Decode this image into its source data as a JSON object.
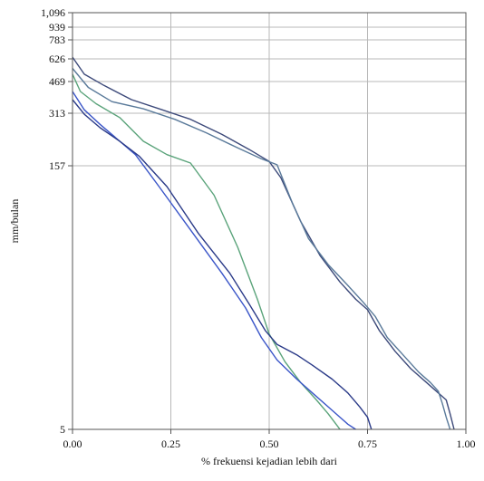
{
  "chart_data": {
    "type": "line",
    "title": "",
    "xlabel": "% frekuensi kejadian lebih dari",
    "ylabel": "mm/bulan",
    "xlim": [
      0,
      1
    ],
    "x_ticks": [
      0,
      0.25,
      0.5,
      0.75,
      1
    ],
    "x_tick_labels": [
      "0.00",
      "0.25",
      "0.50",
      "0.75",
      "1.00"
    ],
    "y_ticks": [
      5,
      157,
      313,
      469,
      626,
      783,
      939,
      1096
    ],
    "y_tick_labels": [
      "5",
      "157",
      "313",
      "469",
      "626",
      "783",
      "939",
      "1,096"
    ],
    "y_scale": "non-linear",
    "grid": true,
    "legend": "none",
    "series": [
      {
        "color": "#3d4a7a",
        "points": [
          [
            0,
            640
          ],
          [
            0.03,
            520
          ],
          [
            0.08,
            450
          ],
          [
            0.15,
            380
          ],
          [
            0.22,
            335
          ],
          [
            0.3,
            295
          ],
          [
            0.38,
            250
          ],
          [
            0.45,
            205
          ],
          [
            0.5,
            170
          ],
          [
            0.53,
            150
          ],
          [
            0.58,
            125
          ],
          [
            0.63,
            105
          ],
          [
            0.68,
            90
          ],
          [
            0.72,
            80
          ],
          [
            0.75,
            74
          ],
          [
            0.78,
            62
          ],
          [
            0.82,
            50
          ],
          [
            0.86,
            40
          ],
          [
            0.9,
            32
          ],
          [
            0.93,
            26
          ],
          [
            0.95,
            22
          ],
          [
            0.96,
            14
          ],
          [
            0.97,
            5
          ]
        ]
      },
      {
        "color": "#5a7a9a",
        "points": [
          [
            0,
            560
          ],
          [
            0.04,
            440
          ],
          [
            0.1,
            370
          ],
          [
            0.18,
            335
          ],
          [
            0.26,
            295
          ],
          [
            0.34,
            255
          ],
          [
            0.42,
            210
          ],
          [
            0.48,
            178
          ],
          [
            0.52,
            160
          ],
          [
            0.56,
            135
          ],
          [
            0.6,
            115
          ],
          [
            0.65,
            100
          ],
          [
            0.7,
            88
          ],
          [
            0.74,
            78
          ],
          [
            0.77,
            70
          ],
          [
            0.8,
            58
          ],
          [
            0.84,
            48
          ],
          [
            0.88,
            38
          ],
          [
            0.91,
            32
          ],
          [
            0.93,
            27
          ],
          [
            0.94,
            20
          ],
          [
            0.95,
            12
          ],
          [
            0.96,
            5
          ]
        ]
      },
      {
        "color": "#5aa37a",
        "points": [
          [
            0,
            520
          ],
          [
            0.02,
            420
          ],
          [
            0.06,
            360
          ],
          [
            0.12,
            300
          ],
          [
            0.18,
            230
          ],
          [
            0.24,
            190
          ],
          [
            0.3,
            165
          ],
          [
            0.36,
            140
          ],
          [
            0.42,
            110
          ],
          [
            0.47,
            80
          ],
          [
            0.5,
            60
          ],
          [
            0.54,
            44
          ],
          [
            0.58,
            32
          ],
          [
            0.62,
            22
          ],
          [
            0.65,
            14
          ],
          [
            0.67,
            8
          ],
          [
            0.68,
            5
          ]
        ]
      },
      {
        "color": "#3a55c8",
        "points": [
          [
            0,
            420
          ],
          [
            0.03,
            330
          ],
          [
            0.07,
            280
          ],
          [
            0.11,
            240
          ],
          [
            0.16,
            190
          ],
          [
            0.22,
            145
          ],
          [
            0.3,
            120
          ],
          [
            0.38,
            95
          ],
          [
            0.44,
            75
          ],
          [
            0.48,
            58
          ],
          [
            0.52,
            45
          ],
          [
            0.57,
            34
          ],
          [
            0.61,
            26
          ],
          [
            0.65,
            18
          ],
          [
            0.68,
            12
          ],
          [
            0.7,
            8
          ],
          [
            0.72,
            5
          ]
        ]
      },
      {
        "color": "#2a3a88",
        "points": [
          [
            0,
            380
          ],
          [
            0.03,
            310
          ],
          [
            0.07,
            270
          ],
          [
            0.12,
            230
          ],
          [
            0.17,
            185
          ],
          [
            0.24,
            145
          ],
          [
            0.32,
            118
          ],
          [
            0.4,
            95
          ],
          [
            0.45,
            77
          ],
          [
            0.49,
            62
          ],
          [
            0.52,
            54
          ],
          [
            0.57,
            48
          ],
          [
            0.61,
            42
          ],
          [
            0.66,
            34
          ],
          [
            0.7,
            26
          ],
          [
            0.73,
            18
          ],
          [
            0.75,
            12
          ],
          [
            0.76,
            5
          ]
        ]
      }
    ]
  }
}
